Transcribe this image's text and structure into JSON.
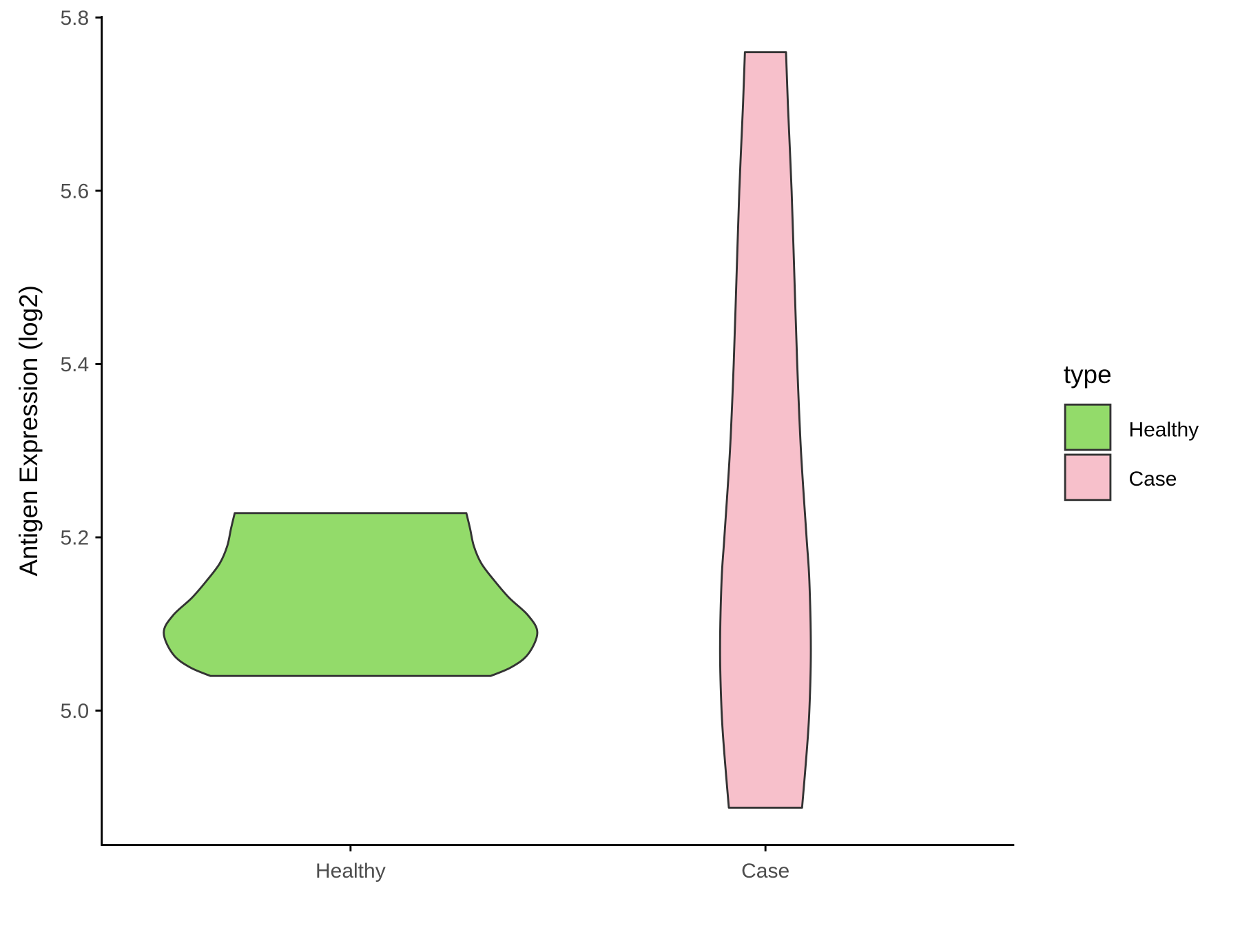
{
  "chart_data": {
    "type": "violin",
    "title": "",
    "xlabel": "",
    "ylabel": "Antigen Expression (log2)",
    "categories": [
      "Healthy",
      "Case"
    ],
    "ylim": [
      4.86,
      5.8
    ],
    "yticks": [
      "5.0",
      "5.2",
      "5.4",
      "5.6",
      "5.8"
    ],
    "ytick_values": [
      5.0,
      5.2,
      5.4,
      5.6,
      5.8
    ],
    "grid": false,
    "legend": {
      "title": "type",
      "position": "right",
      "entries": [
        "Healthy",
        "Case"
      ]
    },
    "colors": {
      "Healthy": "#93DB6A",
      "Case": "#F7C0CB",
      "outline": "#333333"
    },
    "series": [
      {
        "name": "Healthy",
        "min": 5.04,
        "max": 5.228,
        "density": [
          [
            5.04,
            0.75
          ],
          [
            5.05,
            0.86
          ],
          [
            5.065,
            0.95
          ],
          [
            5.09,
            1.0
          ],
          [
            5.11,
            0.95
          ],
          [
            5.13,
            0.85
          ],
          [
            5.15,
            0.77
          ],
          [
            5.17,
            0.7
          ],
          [
            5.19,
            0.66
          ],
          [
            5.21,
            0.64
          ],
          [
            5.228,
            0.62
          ]
        ]
      },
      {
        "name": "Case",
        "min": 4.888,
        "max": 5.76,
        "density": [
          [
            4.888,
            0.196
          ],
          [
            4.95,
            0.22
          ],
          [
            5.0,
            0.235
          ],
          [
            5.07,
            0.243
          ],
          [
            5.15,
            0.235
          ],
          [
            5.2,
            0.22
          ],
          [
            5.3,
            0.19
          ],
          [
            5.4,
            0.17
          ],
          [
            5.5,
            0.155
          ],
          [
            5.6,
            0.14
          ],
          [
            5.7,
            0.12
          ],
          [
            5.76,
            0.11
          ]
        ]
      }
    ]
  }
}
